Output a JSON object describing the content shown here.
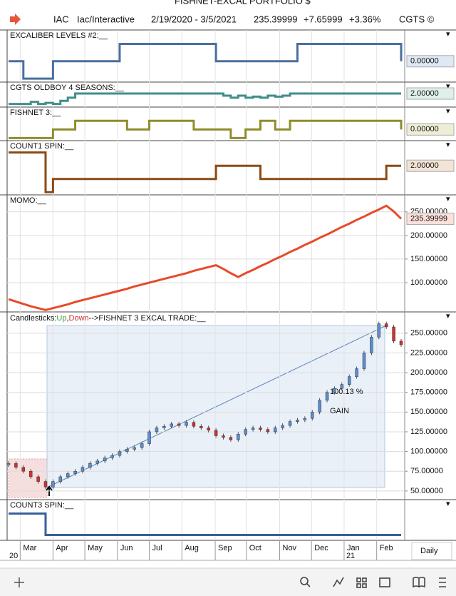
{
  "window_title": "FISHNET-EXCAL PORTFOLIO $",
  "header": {
    "symbol": "IAC",
    "name": "Iac/Interactive",
    "range": "2/19/2020 - 3/5/2021",
    "last": "235.39999",
    "change": "+7.65999",
    "change_pct": "+3.36%",
    "brand": "CGTS ©"
  },
  "chart_data": [
    {
      "type": "step",
      "title": "EXCALIBER LEVELS #2:__",
      "color": "#4a6f9e",
      "label_bg": "#dfe9f5",
      "ylim": [
        -1.2,
        1.8
      ],
      "values": [
        0,
        0,
        -1,
        -1,
        -1,
        -1,
        0,
        0,
        0,
        0,
        0,
        0,
        0,
        0,
        0,
        1,
        1,
        1,
        1,
        1,
        1,
        1,
        1,
        1,
        1,
        1,
        1,
        1,
        0,
        0,
        0,
        0,
        0,
        0,
        0,
        0,
        0,
        0,
        0,
        1,
        1,
        1,
        1,
        1,
        1,
        1,
        1,
        1,
        1,
        1,
        1,
        1,
        1,
        0
      ],
      "current_label": "0.00000"
    },
    {
      "type": "step",
      "title": "CGTS OLDBOY 4 SEASONS:__",
      "color": "#3f8f8a",
      "label_bg": "#dff0ea",
      "ylim": [
        0.7,
        3.1
      ],
      "values": [
        1,
        1,
        1,
        1.2,
        1,
        1.1,
        1,
        1.3,
        1.6,
        2,
        2,
        2,
        2,
        2,
        2,
        2,
        2,
        2,
        2,
        2,
        2,
        2,
        2,
        2,
        2,
        2,
        2,
        2,
        2,
        1.8,
        1.6,
        1.8,
        1.6,
        1.7,
        1.6,
        1.8,
        1.7,
        1.8,
        2,
        2,
        2,
        2,
        2,
        2,
        2,
        2,
        2,
        2,
        2,
        2,
        2,
        2,
        2,
        2
      ],
      "current_label": "2.00000"
    },
    {
      "type": "step",
      "title": "FISHNET 3:__",
      "color": "#8f8d2a",
      "label_bg": "#eeeed6",
      "ylim": [
        -1.3,
        2.6
      ],
      "values": [
        -1,
        -1,
        -1,
        -1,
        -1,
        -1,
        0,
        0,
        0,
        1,
        1,
        1,
        1,
        1,
        1,
        1,
        0,
        0,
        0,
        1,
        1,
        1,
        1,
        1,
        1,
        0,
        0,
        0,
        0,
        0,
        -1,
        -1,
        0,
        0,
        1,
        1,
        0,
        0,
        1,
        1,
        1,
        1,
        1,
        1,
        1,
        1,
        1,
        1,
        1,
        1,
        1,
        1,
        1,
        0
      ],
      "current_label": "0.00000"
    },
    {
      "type": "step",
      "title": "COUNT1 SPIN:__",
      "color": "#8a4a14",
      "label_bg": "#f3e4d6",
      "ylim": [
        -0.2,
        3.9
      ],
      "values": [
        3,
        3,
        3,
        3,
        3,
        0,
        1,
        1,
        1,
        1,
        1,
        1,
        1,
        1,
        1,
        1,
        1,
        1,
        1,
        1,
        1,
        1,
        1,
        1,
        1,
        1,
        1,
        1,
        2,
        2,
        2,
        2,
        2,
        2,
        1,
        1,
        1,
        1,
        1,
        1,
        1,
        1,
        1,
        1,
        1,
        1,
        1,
        1,
        1,
        1,
        1,
        2,
        2,
        2
      ],
      "current_label": "2.00000"
    },
    {
      "type": "line",
      "title": "MOMO:__",
      "color": "#e84a2a",
      "label_bg": "#fbe0dc",
      "ylim": [
        38,
        286
      ],
      "yticks": [
        {
          "value": 100,
          "label": "100.00000"
        },
        {
          "value": 150,
          "label": "150.00000"
        },
        {
          "value": 200,
          "label": "200.00000"
        },
        {
          "value": 250,
          "label": "250.00000"
        }
      ],
      "values": [
        65,
        60,
        55,
        50,
        46,
        42,
        46,
        50,
        54,
        59,
        63,
        67,
        71,
        75,
        79,
        83,
        87,
        92,
        96,
        100,
        104,
        108,
        112,
        116,
        120,
        125,
        129,
        133,
        137,
        129,
        120,
        112,
        120,
        127,
        135,
        142,
        150,
        157,
        165,
        172,
        180,
        187,
        195,
        202,
        210,
        218,
        225,
        233,
        240,
        248,
        255,
        263,
        251,
        235.4
      ],
      "current_label": "235.39999"
    },
    {
      "type": "candle",
      "title": "Candlesticks:",
      "legend": [
        {
          "name": "Up",
          "color": "#3a9a3a"
        },
        {
          "name": "Down",
          "color": "#d03030"
        }
      ],
      "trade_label": "-->FISHNET 3 EXCAL TRADE:__",
      "annotation": "100.13 %",
      "annotation2": "GAIN",
      "color": "#5b8fd0",
      "ylim": [
        39,
        277
      ],
      "yticks": [
        {
          "value": 50,
          "label": "50.00000"
        },
        {
          "value": 75,
          "label": "75.00000"
        },
        {
          "value": 100,
          "label": "100.00000"
        },
        {
          "value": 125,
          "label": "125.00000"
        },
        {
          "value": 150,
          "label": "150.00000"
        },
        {
          "value": 175,
          "label": "175.00000"
        },
        {
          "value": 200,
          "label": "200.00000"
        },
        {
          "value": 225,
          "label": "225.00000"
        },
        {
          "value": 250,
          "label": "250.00000"
        }
      ],
      "values": [
        85,
        80,
        75,
        68,
        62,
        55,
        62,
        68,
        72,
        75,
        80,
        85,
        88,
        92,
        95,
        100,
        103,
        105,
        110,
        125,
        130,
        132,
        135,
        133,
        137,
        132,
        130,
        127,
        120,
        118,
        115,
        122,
        128,
        130,
        128,
        125,
        130,
        133,
        138,
        140,
        142,
        150,
        165,
        175,
        180,
        185,
        195,
        205,
        225,
        245,
        262,
        258,
        240,
        235.4
      ]
    },
    {
      "type": "step",
      "title": "COUNT3 SPIN:__",
      "color": "#3a5f9a",
      "ylim": [
        -0.25,
        1.65
      ],
      "values": [
        1,
        1,
        1,
        1,
        1,
        0,
        0,
        0,
        0,
        0,
        0,
        0,
        0,
        0,
        0,
        0,
        0,
        0,
        0,
        0,
        0,
        0,
        0,
        0,
        0,
        0,
        0,
        0,
        0,
        0,
        0,
        0,
        0,
        0,
        0,
        0,
        0,
        0,
        0,
        0,
        0,
        0,
        0,
        0,
        0,
        0,
        0,
        0,
        0,
        0,
        0,
        0,
        0,
        0
      ]
    }
  ],
  "x_axis": {
    "categories": [
      "Mar",
      "Apr",
      "May",
      "Jun",
      "Jul",
      "Aug",
      "Sep",
      "Oct",
      "Nov",
      "Dec",
      "Jan",
      "Feb"
    ],
    "years": [
      "20",
      "21"
    ],
    "interval": "Daily"
  }
}
